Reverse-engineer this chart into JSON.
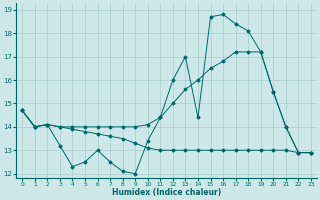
{
  "title": "",
  "xlabel": "Humidex (Indice chaleur)",
  "bg_color": "#cce8e8",
  "line_color": "#006666",
  "grid_color": "#aacccc",
  "xlim": [
    -0.5,
    23.5
  ],
  "ylim": [
    11.8,
    19.3
  ],
  "yticks": [
    12,
    13,
    14,
    15,
    16,
    17,
    18,
    19
  ],
  "xticks": [
    0,
    1,
    2,
    3,
    4,
    5,
    6,
    7,
    8,
    9,
    10,
    11,
    12,
    13,
    14,
    15,
    16,
    17,
    18,
    19,
    20,
    21,
    22,
    23
  ],
  "series": [
    {
      "x": [
        0,
        1,
        2,
        3,
        4,
        5,
        6,
        7,
        8,
        9,
        10,
        11,
        12,
        13,
        14,
        15,
        16,
        17,
        18,
        19,
        20,
        21,
        22,
        23
      ],
      "y": [
        14.7,
        14.0,
        14.1,
        13.2,
        12.3,
        12.5,
        13.0,
        12.5,
        12.1,
        12.0,
        13.4,
        14.4,
        16.0,
        17.0,
        14.4,
        18.7,
        18.8,
        18.4,
        18.1,
        17.2,
        15.5,
        14.0,
        12.9,
        12.9
      ]
    },
    {
      "x": [
        0,
        1,
        2,
        3,
        4,
        5,
        6,
        7,
        8,
        9,
        10,
        11,
        12,
        13,
        14,
        15,
        16,
        17,
        18,
        19,
        20,
        21,
        22,
        23
      ],
      "y": [
        14.7,
        14.0,
        14.1,
        14.0,
        13.9,
        13.8,
        13.7,
        13.6,
        13.5,
        13.3,
        13.1,
        13.0,
        13.0,
        13.0,
        13.0,
        13.0,
        13.0,
        13.0,
        13.0,
        13.0,
        13.0,
        13.0,
        12.9,
        12.9
      ]
    },
    {
      "x": [
        0,
        1,
        2,
        3,
        4,
        5,
        6,
        7,
        8,
        9,
        10,
        11,
        12,
        13,
        14,
        15,
        16,
        17,
        18,
        19,
        20,
        21,
        22,
        23
      ],
      "y": [
        14.7,
        14.0,
        14.1,
        14.0,
        14.0,
        14.0,
        14.0,
        14.0,
        14.0,
        14.0,
        14.1,
        14.4,
        15.0,
        15.6,
        16.0,
        16.5,
        16.8,
        17.2,
        17.2,
        17.2,
        15.5,
        14.0,
        12.9,
        12.9
      ]
    }
  ]
}
